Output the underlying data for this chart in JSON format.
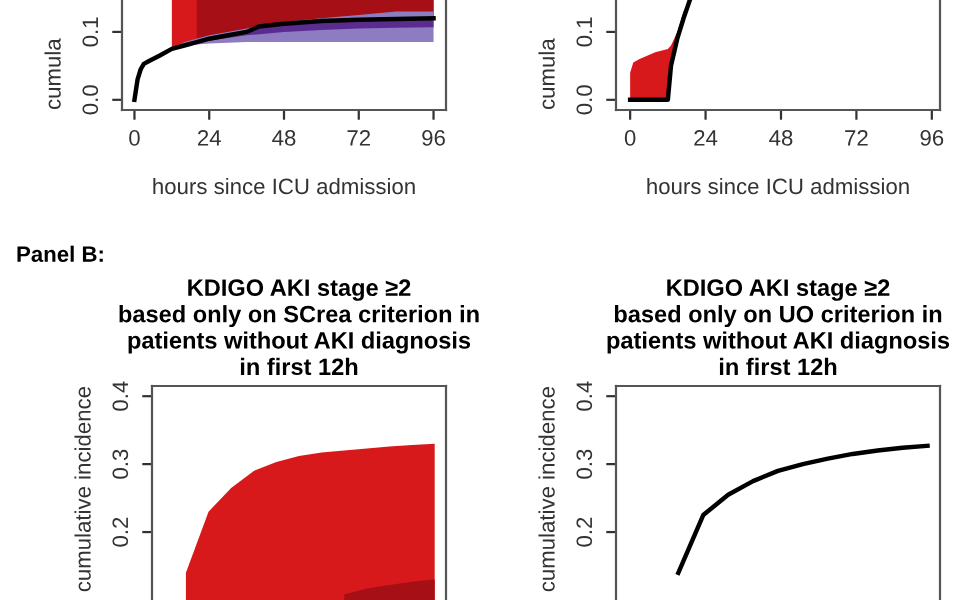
{
  "chart_data": [
    {
      "type": "line",
      "xlabel": "hours since ICU admission",
      "ylabel": "cumula",
      "xlim": [
        -4,
        100
      ],
      "ylim": [
        -0.015,
        0.147
      ],
      "xticks": [
        0,
        24,
        48,
        72,
        96
      ],
      "yticks": [
        {
          "value": 0,
          "label": "0.0"
        },
        0.1
      ],
      "grid": false,
      "legend": false,
      "series": [
        {
          "color": "#d7191c",
          "x": [
            12,
            16,
            20,
            24,
            36,
            48,
            60,
            72,
            84,
            96
          ],
          "values": [
            null,
            null,
            null,
            null,
            null,
            null,
            null,
            null,
            null,
            null
          ],
          "lower": [
            0.075,
            0.08,
            0.085,
            0.09,
            0.1,
            0.112,
            0.116,
            0.118,
            0.119,
            0.12
          ],
          "upper": [
            0.147,
            0.147,
            0.147,
            0.147,
            0.147,
            0.147,
            0.147,
            0.147,
            0.147,
            0.147
          ]
        },
        {
          "color": "#a50f15",
          "x": [
            20,
            24,
            36,
            48,
            60,
            72,
            84,
            96
          ],
          "values": [
            null,
            null,
            null,
            null,
            null,
            null,
            null,
            null
          ],
          "lower": [
            0.085,
            0.09,
            0.1,
            0.112,
            0.116,
            0.118,
            0.119,
            0.12
          ],
          "upper": [
            0.147,
            0.147,
            0.147,
            0.147,
            0.147,
            0.147,
            0.147,
            0.147
          ]
        },
        {
          "color": "#8e7cc3",
          "x": [
            12,
            16,
            24,
            36,
            48,
            60,
            72,
            84,
            96
          ],
          "values": [
            null,
            null,
            null,
            null,
            null,
            null,
            null,
            null,
            null
          ],
          "lower": [
            0.075,
            0.08,
            0.083,
            0.085,
            0.085,
            0.085,
            0.085,
            0.085,
            0.085
          ],
          "upper": [
            0.075,
            0.085,
            0.095,
            0.105,
            0.115,
            0.12,
            0.125,
            0.13,
            0.13
          ]
        },
        {
          "color": "#5b2c8f",
          "x": [
            12,
            16,
            24,
            36,
            48,
            60,
            72,
            84,
            96
          ],
          "values": [
            null,
            null,
            null,
            null,
            null,
            null,
            null,
            null,
            null
          ],
          "lower": [
            0.075,
            0.08,
            0.087,
            0.095,
            0.1,
            0.103,
            0.105,
            0.106,
            0.107
          ],
          "upper": [
            0.075,
            0.082,
            0.09,
            0.102,
            0.112,
            0.117,
            0.119,
            0.121,
            0.122
          ]
        },
        {
          "color": "#000000",
          "x": [
            0,
            1,
            2,
            3,
            5,
            8,
            12,
            16,
            20,
            24,
            30,
            36,
            40,
            48,
            60,
            72,
            84,
            96
          ],
          "values": [
            0,
            0.03,
            0.045,
            0.053,
            0.058,
            0.065,
            0.075,
            0.08,
            0.085,
            0.09,
            0.095,
            0.1,
            0.108,
            0.112,
            0.116,
            0.118,
            0.119,
            0.12
          ]
        }
      ]
    },
    {
      "type": "line",
      "xlabel": "hours since ICU admission",
      "ylabel": "cumula",
      "xlim": [
        -4.5,
        98.6
      ],
      "ylim": [
        -0.015,
        0.147
      ],
      "xticks": [
        0,
        24,
        48,
        72,
        96
      ],
      "yticks": [
        {
          "value": 0,
          "label": "0.0"
        },
        0.1
      ],
      "grid": false,
      "legend": false,
      "series": [
        {
          "color": "#d7191c",
          "x": [
            0,
            1,
            3,
            8,
            12,
            13,
            15,
            17,
            19
          ],
          "values": [
            null,
            null,
            null,
            null,
            null,
            null,
            null,
            null,
            null
          ],
          "lower": [
            0,
            0,
            0,
            0,
            0,
            0.05,
            0.09,
            0.12,
            0.147
          ],
          "upper": [
            0.04,
            0.055,
            0.06,
            0.07,
            0.075,
            0.08,
            0.1,
            0.13,
            0.147
          ]
        },
        {
          "color": "#000000",
          "x": [
            0,
            12,
            13,
            15,
            17,
            19
          ],
          "values": [
            0,
            0,
            0.05,
            0.09,
            0.12,
            0.147
          ]
        }
      ]
    },
    {
      "type": "area",
      "title": "KDIGO AKI stage ≥2\nbased only on SCrea criterion in\npatients without AKI diagnosis\nin first 12h",
      "ylabel": "cumulative incidence",
      "annotations": [
        "Panel B:"
      ],
      "tick_labels": "y",
      "categories": [
        null,
        null,
        null,
        null,
        null,
        null,
        null,
        null,
        null,
        null,
        null,
        null,
        null
      ],
      "ylim": [
        0.1,
        0.415
      ],
      "yticks": [
        0.2,
        0.3,
        0.4
      ],
      "grid": false,
      "legend": false,
      "series": [
        {
          "color": "#d7191c",
          "values": [
            null,
            0.14,
            0.23,
            0.265,
            0.29,
            0.303,
            0.312,
            0.317,
            0.32,
            0.323,
            0.326,
            0.328,
            0.33
          ]
        },
        {
          "color": "#a50f15",
          "values": [
            null,
            null,
            null,
            null,
            null,
            null,
            null,
            null,
            0.108,
            0.117,
            0.122,
            0.127,
            0.13
          ]
        }
      ]
    },
    {
      "type": "line",
      "title": "KDIGO AKI stage ≥2\nbased only on UO criterion in\npatients without AKI diagnosis\nin first 12h",
      "ylabel": "cumulative incidence",
      "tick_labels": "y",
      "categories": [
        null,
        null,
        null,
        null,
        null,
        null,
        null,
        null,
        null,
        null,
        null,
        null,
        null
      ],
      "ylim": [
        0.1,
        0.415
      ],
      "yticks": [
        0.2,
        0.3,
        0.4
      ],
      "grid": false,
      "legend": false,
      "series": [
        {
          "color": "#000000",
          "values": [
            null,
            null,
            0.14,
            0.225,
            0.255,
            0.275,
            0.29,
            0.3,
            0.308,
            0.315,
            0.32,
            0.324,
            0.327
          ]
        }
      ]
    }
  ]
}
